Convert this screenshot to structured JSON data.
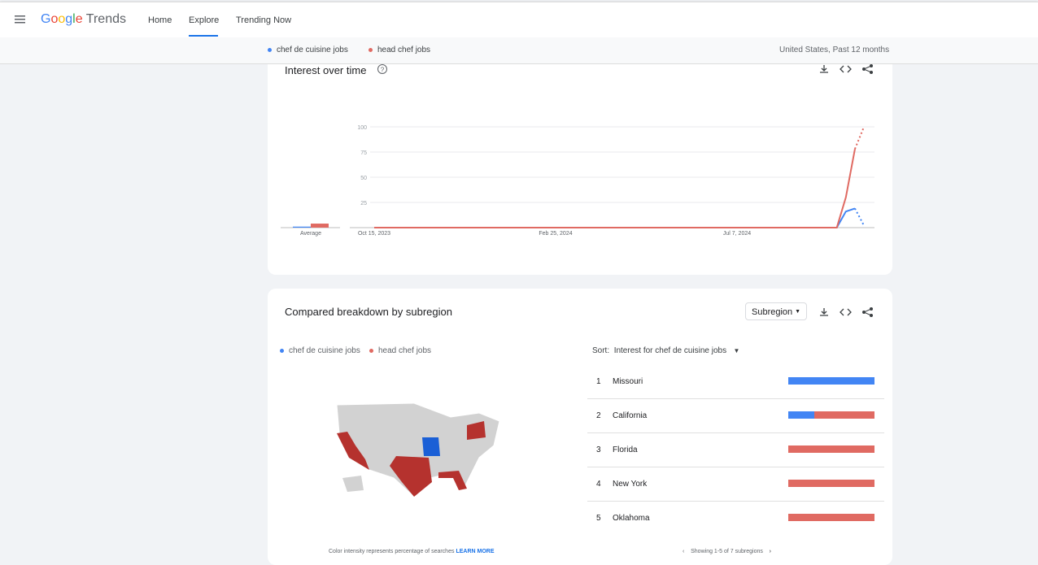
{
  "header": {
    "logo_google": "Google",
    "logo_trends": "Trends",
    "nav": [
      "Home",
      "Explore",
      "Trending Now"
    ]
  },
  "compare_bar": {
    "scope": "United States, Past 12 months"
  },
  "interest_over_time": {
    "title": "Interest over time",
    "chart_data": {
      "type": "line",
      "average_label": "Average",
      "categories": [
        "Oct 15, 2023",
        null,
        null,
        null,
        null,
        null,
        null,
        null,
        null,
        null,
        null,
        null,
        null,
        null,
        null,
        null,
        null,
        null,
        null,
        null,
        "Feb 25, 2024",
        null,
        null,
        null,
        null,
        null,
        null,
        null,
        null,
        null,
        null,
        null,
        null,
        null,
        null,
        null,
        null,
        null,
        null,
        null,
        "Jul 7, 2024",
        null,
        null,
        null,
        null,
        null,
        null,
        null,
        null,
        null,
        null,
        null,
        null,
        null,
        null
      ],
      "series": [
        {
          "name": "chef de cuisine jobs",
          "color": "#4285f4",
          "average": 1,
          "values": [
            0,
            0,
            0,
            0,
            0,
            0,
            0,
            0,
            0,
            0,
            0,
            0,
            0,
            0,
            0,
            0,
            0,
            0,
            0,
            0,
            0,
            0,
            0,
            0,
            0,
            0,
            0,
            0,
            0,
            0,
            0,
            0,
            0,
            0,
            0,
            0,
            0,
            0,
            0,
            0,
            0,
            0,
            0,
            0,
            0,
            0,
            0,
            0,
            0,
            0,
            0,
            0,
            16,
            19,
            2
          ]
        },
        {
          "name": "head chef jobs",
          "color": "#e06a62",
          "average": 4,
          "values": [
            0,
            0,
            0,
            0,
            0,
            0,
            0,
            0,
            0,
            0,
            0,
            0,
            0,
            0,
            0,
            0,
            0,
            0,
            0,
            0,
            0,
            0,
            0,
            0,
            0,
            0,
            0,
            0,
            0,
            0,
            0,
            0,
            0,
            0,
            0,
            0,
            0,
            0,
            0,
            0,
            0,
            0,
            0,
            0,
            0,
            0,
            0,
            0,
            0,
            0,
            0,
            0,
            30,
            78,
            100
          ]
        }
      ],
      "ylim": [
        0,
        100
      ],
      "yticks": [
        25,
        50,
        75,
        100
      ],
      "grid": true
    }
  },
  "subregion": {
    "title": "Compared breakdown by subregion",
    "dropdown": "Subregion",
    "sort_label": "Sort:",
    "sort_value": "Interest for chef de cuisine jobs",
    "rows": [
      {
        "rank": 1,
        "name": "Missouri",
        "values": [
          100,
          0
        ]
      },
      {
        "rank": 2,
        "name": "California",
        "values": [
          30,
          70
        ]
      },
      {
        "rank": 3,
        "name": "Florida",
        "values": [
          0,
          100
        ]
      },
      {
        "rank": 4,
        "name": "New York",
        "values": [
          0,
          100
        ]
      },
      {
        "rank": 5,
        "name": "Oklahoma",
        "values": [
          0,
          100
        ]
      }
    ],
    "footer_note": "Color intensity represents percentage of searches",
    "learn_more": "LEARN MORE",
    "pagination": "Showing 1-5 of 7 subregions"
  }
}
